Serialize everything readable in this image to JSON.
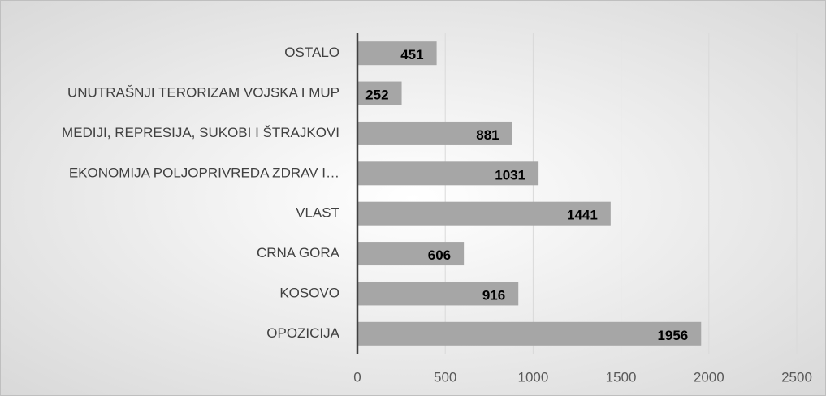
{
  "chart_data": {
    "type": "bar",
    "orientation": "horizontal",
    "categories": [
      "OSTALO",
      "UNUTRAŠNJI TERORIZAM VOJSKA I MUP",
      "MEDIJI, REPRESIJA, SUKOBI I ŠTRAJKOVI",
      "EKONOMIJA POLJOPRIVREDA ZDRAV I…",
      "VLAST",
      "CRNA GORA",
      "KOSOVO",
      "OPOZICIJA"
    ],
    "values": [
      451,
      252,
      881,
      1031,
      1441,
      606,
      916,
      1956
    ],
    "color": "#a6a6a6",
    "xlim": [
      0,
      2500
    ],
    "xticks": [
      0,
      500,
      1000,
      1500,
      2000,
      2500
    ],
    "grid": true
  }
}
